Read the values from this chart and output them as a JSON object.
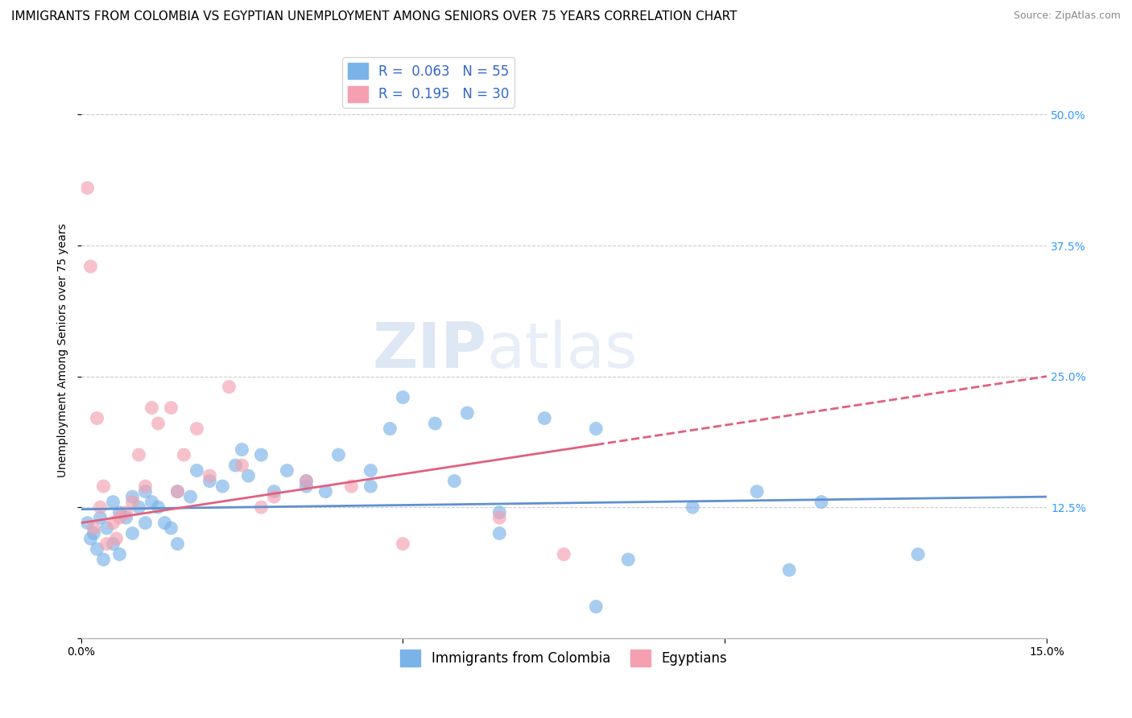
{
  "title": "IMMIGRANTS FROM COLOMBIA VS EGYPTIAN UNEMPLOYMENT AMONG SENIORS OVER 75 YEARS CORRELATION CHART",
  "source": "Source: ZipAtlas.com",
  "ylabel": "Unemployment Among Seniors over 75 years",
  "xlim": [
    0.0,
    15.0
  ],
  "ylim": [
    0.0,
    55.0
  ],
  "xticks": [
    0.0,
    5.0,
    10.0,
    15.0
  ],
  "xticklabels": [
    "0.0%",
    "",
    "",
    "15.0%"
  ],
  "yticks_right": [
    0.0,
    12.5,
    25.0,
    37.5,
    50.0
  ],
  "yticklabels_right": [
    "",
    "12.5%",
    "25.0%",
    "37.5%",
    "50.0%"
  ],
  "blue_R": 0.063,
  "blue_N": 55,
  "pink_R": 0.195,
  "pink_N": 30,
  "blue_color": "#7ab3e8",
  "pink_color": "#f4a0b0",
  "blue_line_color": "#6090d0",
  "pink_line_color": "#e06080",
  "legend_label_blue": "Immigrants from Colombia",
  "legend_label_pink": "Egyptians",
  "watermark_zip": "ZIP",
  "watermark_atlas": "atlas",
  "blue_scatter_x": [
    0.1,
    0.15,
    0.2,
    0.25,
    0.3,
    0.35,
    0.4,
    0.5,
    0.5,
    0.6,
    0.6,
    0.7,
    0.8,
    0.8,
    0.9,
    1.0,
    1.0,
    1.1,
    1.2,
    1.3,
    1.4,
    1.5,
    1.5,
    1.7,
    1.8,
    2.0,
    2.2,
    2.4,
    2.6,
    2.8,
    3.0,
    3.2,
    3.5,
    3.8,
    4.0,
    4.5,
    4.8,
    5.0,
    5.5,
    5.8,
    6.0,
    6.5,
    7.2,
    8.0,
    8.5,
    9.5,
    10.5,
    11.0,
    11.5,
    2.5,
    3.5,
    4.5,
    6.5,
    8.0,
    13.0
  ],
  "blue_scatter_y": [
    11.0,
    9.5,
    10.0,
    8.5,
    11.5,
    7.5,
    10.5,
    13.0,
    9.0,
    12.0,
    8.0,
    11.5,
    13.5,
    10.0,
    12.5,
    14.0,
    11.0,
    13.0,
    12.5,
    11.0,
    10.5,
    9.0,
    14.0,
    13.5,
    16.0,
    15.0,
    14.5,
    16.5,
    15.5,
    17.5,
    14.0,
    16.0,
    15.0,
    14.0,
    17.5,
    14.5,
    20.0,
    23.0,
    20.5,
    15.0,
    21.5,
    10.0,
    21.0,
    20.0,
    7.5,
    12.5,
    14.0,
    6.5,
    13.0,
    18.0,
    14.5,
    16.0,
    12.0,
    3.0,
    8.0
  ],
  "pink_scatter_x": [
    0.1,
    0.2,
    0.3,
    0.4,
    0.5,
    0.6,
    0.7,
    0.8,
    0.9,
    1.0,
    1.1,
    1.2,
    1.4,
    1.6,
    1.8,
    2.0,
    2.3,
    2.5,
    3.0,
    3.5,
    4.2,
    5.0,
    6.5,
    7.5,
    0.15,
    0.25,
    0.35,
    0.55,
    1.5,
    2.8
  ],
  "pink_scatter_y": [
    43.0,
    10.5,
    12.5,
    9.0,
    11.0,
    11.5,
    12.0,
    13.0,
    17.5,
    14.5,
    22.0,
    20.5,
    22.0,
    17.5,
    20.0,
    15.5,
    24.0,
    16.5,
    13.5,
    15.0,
    14.5,
    9.0,
    11.5,
    8.0,
    35.5,
    21.0,
    14.5,
    9.5,
    14.0,
    12.5
  ],
  "grid_color": "#cccccc",
  "bg_color": "#ffffff",
  "title_fontsize": 11,
  "axis_label_fontsize": 10,
  "tick_fontsize": 10,
  "legend_fontsize": 12
}
